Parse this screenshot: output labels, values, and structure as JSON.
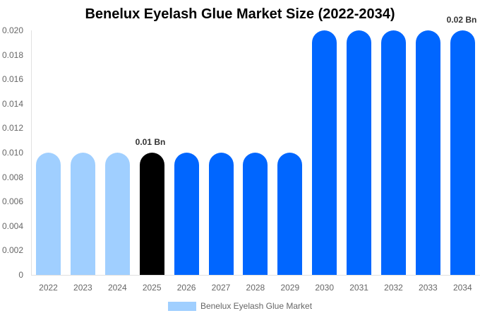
{
  "chart_data": {
    "type": "bar",
    "title": "Benelux Eyelash Glue Market Size (2022-2034)",
    "xlabel": "",
    "ylabel": "",
    "ylim": [
      0,
      0.02
    ],
    "yticks": [
      "0",
      "0.002",
      "0.004",
      "0.006",
      "0.008",
      "0.010",
      "0.012",
      "0.014",
      "0.016",
      "0.018",
      "0.020"
    ],
    "categories": [
      "2022",
      "2023",
      "2024",
      "2025",
      "2026",
      "2027",
      "2028",
      "2029",
      "2030",
      "2031",
      "2032",
      "2033",
      "2034"
    ],
    "series": [
      {
        "name": "Benelux Eyelash Glue Market",
        "values": [
          0.01,
          0.01,
          0.01,
          0.01,
          0.01,
          0.01,
          0.01,
          0.01,
          0.02,
          0.02,
          0.02,
          0.02,
          0.02
        ],
        "colors": [
          "#a0cfff",
          "#a0cfff",
          "#a0cfff",
          "#000000",
          "#0066ff",
          "#0066ff",
          "#0066ff",
          "#0066ff",
          "#0066ff",
          "#0066ff",
          "#0066ff",
          "#0066ff",
          "#0066ff"
        ]
      }
    ],
    "annotations": [
      {
        "category": "2025",
        "text": "0.01 Bn"
      },
      {
        "category": "2034",
        "text": "0.02 Bn"
      }
    ],
    "legend": {
      "position": "bottom",
      "entries": [
        "Benelux Eyelash Glue Market"
      ]
    },
    "grid": false
  },
  "title": "Benelux Eyelash Glue Market Size (2022-2034)",
  "legend": {
    "label": "Benelux Eyelash Glue Market",
    "color": "#a0cfff"
  },
  "annotations": {
    "a2025": "0.01 Bn",
    "a2034": "0.02 Bn"
  },
  "colors": {
    "historical": "#a0cfff",
    "base_year": "#000000",
    "forecast": "#0066ff"
  }
}
